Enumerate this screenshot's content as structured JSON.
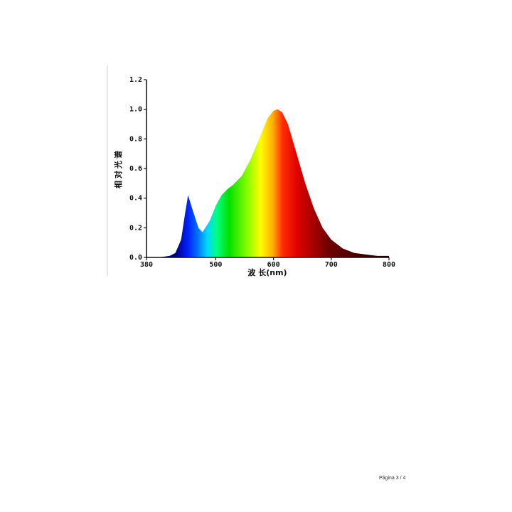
{
  "chart_data": {
    "type": "area",
    "x": [
      380,
      400,
      420,
      430,
      440,
      447,
      452,
      460,
      470,
      477,
      490,
      500,
      510,
      520,
      530,
      545,
      560,
      575,
      590,
      600,
      607,
      615,
      625,
      640,
      655,
      670,
      685,
      700,
      720,
      740,
      760,
      780,
      800
    ],
    "values": [
      0,
      0,
      0.01,
      0.03,
      0.12,
      0.3,
      0.42,
      0.32,
      0.2,
      0.17,
      0.25,
      0.35,
      0.42,
      0.46,
      0.49,
      0.55,
      0.66,
      0.8,
      0.94,
      0.99,
      1.0,
      0.98,
      0.9,
      0.7,
      0.5,
      0.33,
      0.2,
      0.12,
      0.06,
      0.03,
      0.02,
      0.01,
      0.01
    ],
    "xlabel": "波 长(nm)",
    "ylabel": "相对光谱",
    "xlim": [
      380,
      800
    ],
    "ylim": [
      0,
      1.2
    ],
    "xticks": [
      380,
      500,
      600,
      700,
      800
    ],
    "yticks": [
      {
        "value": 0,
        "label": "0.0"
      },
      0.2,
      0.4,
      0.6,
      0.8,
      {
        "value": 1,
        "label": "1.0"
      },
      1.2
    ]
  },
  "footer": "Página 3 / 4"
}
